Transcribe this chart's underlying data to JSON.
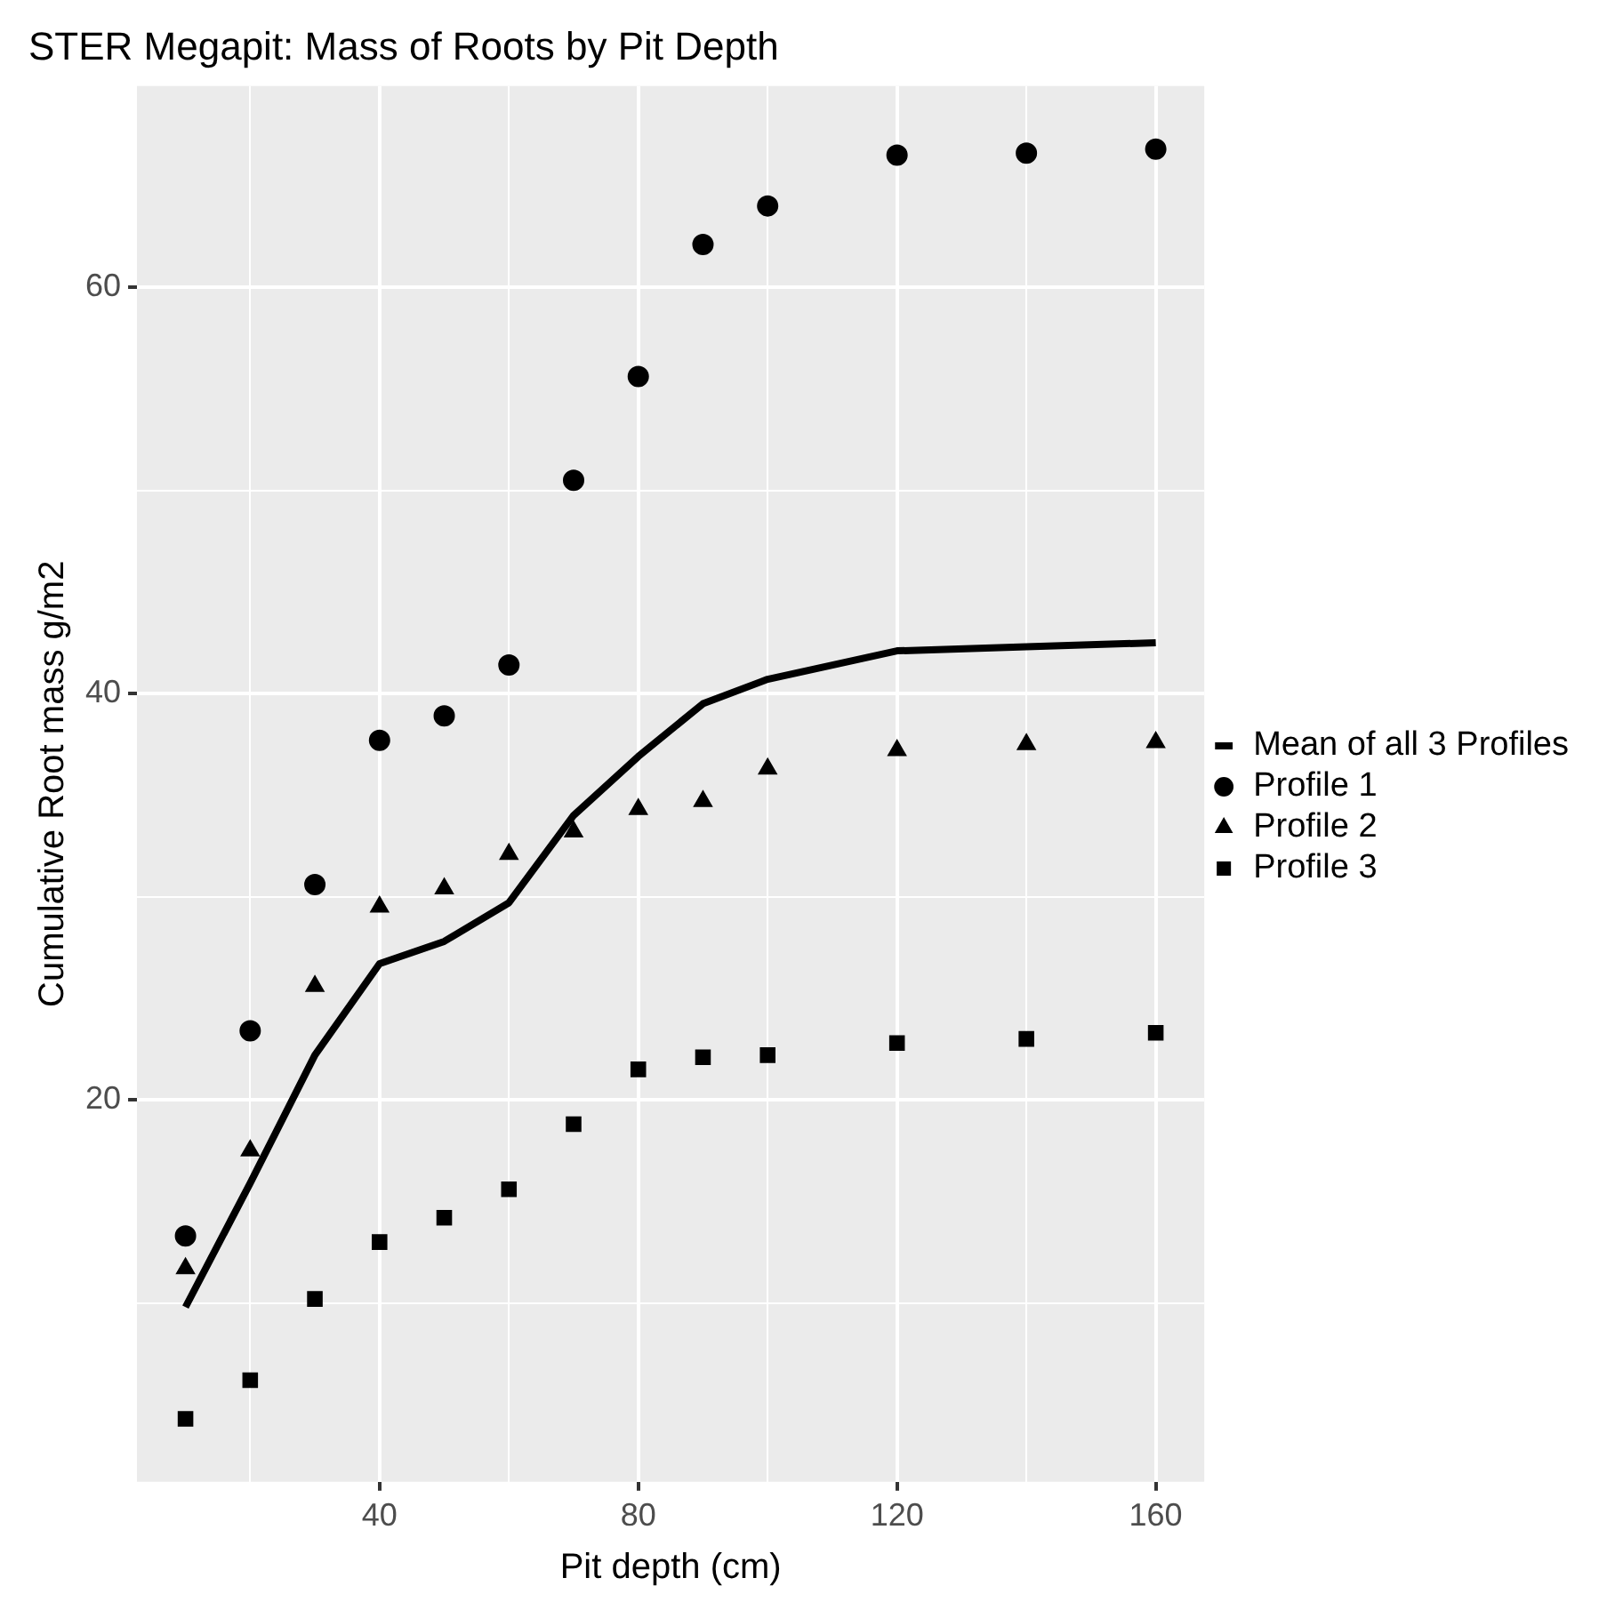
{
  "chart_data": {
    "type": "scatter",
    "title": "STER Megapit: Mass of Roots by Pit Depth",
    "xlabel": "Pit depth (cm)",
    "ylabel": "Cumulative Root mass g/m2",
    "x": [
      10,
      20,
      30,
      40,
      50,
      60,
      70,
      80,
      90,
      100,
      120,
      140,
      160
    ],
    "series": [
      {
        "name": "Mean of all 3 Profiles",
        "type": "line",
        "marker": "none",
        "line_style": "solid",
        "color": "#000000",
        "values": [
          9.8,
          15.9,
          22.2,
          26.7,
          27.8,
          29.7,
          34.0,
          36.9,
          39.5,
          40.7,
          42.1,
          42.3,
          42.5
        ]
      },
      {
        "name": "Profile 1",
        "type": "scatter",
        "marker": "circle",
        "color": "#000000",
        "values": [
          13.3,
          23.4,
          30.6,
          37.7,
          38.9,
          41.4,
          50.5,
          55.6,
          62.1,
          64.0,
          66.5,
          66.6,
          66.8
        ]
      },
      {
        "name": "Profile 2",
        "type": "scatter",
        "marker": "triangle",
        "color": "#000000",
        "values": [
          11.7,
          17.5,
          25.6,
          29.5,
          30.4,
          32.1,
          33.2,
          34.3,
          34.7,
          36.3,
          37.2,
          37.5,
          37.6
        ]
      },
      {
        "name": "Profile 3",
        "type": "scatter",
        "marker": "square",
        "color": "#000000",
        "values": [
          4.3,
          6.2,
          10.2,
          13.0,
          14.2,
          15.6,
          18.8,
          21.5,
          22.1,
          22.2,
          22.8,
          23.0,
          23.3
        ]
      }
    ],
    "xlim": [
      2.5,
      167.5
    ],
    "ylim": [
      1.2,
      69.9
    ],
    "xticks": [
      {
        "value": 20,
        "label": null
      },
      40,
      {
        "value": 60,
        "label": null
      },
      80,
      {
        "value": 100,
        "label": null
      },
      120,
      {
        "value": 140,
        "label": null
      },
      160
    ],
    "yticks": [
      {
        "value": 10,
        "label": null
      },
      20,
      {
        "value": 30,
        "label": null
      },
      40,
      {
        "value": 50,
        "label": null
      },
      60
    ],
    "grid": true,
    "legend": "right"
  }
}
